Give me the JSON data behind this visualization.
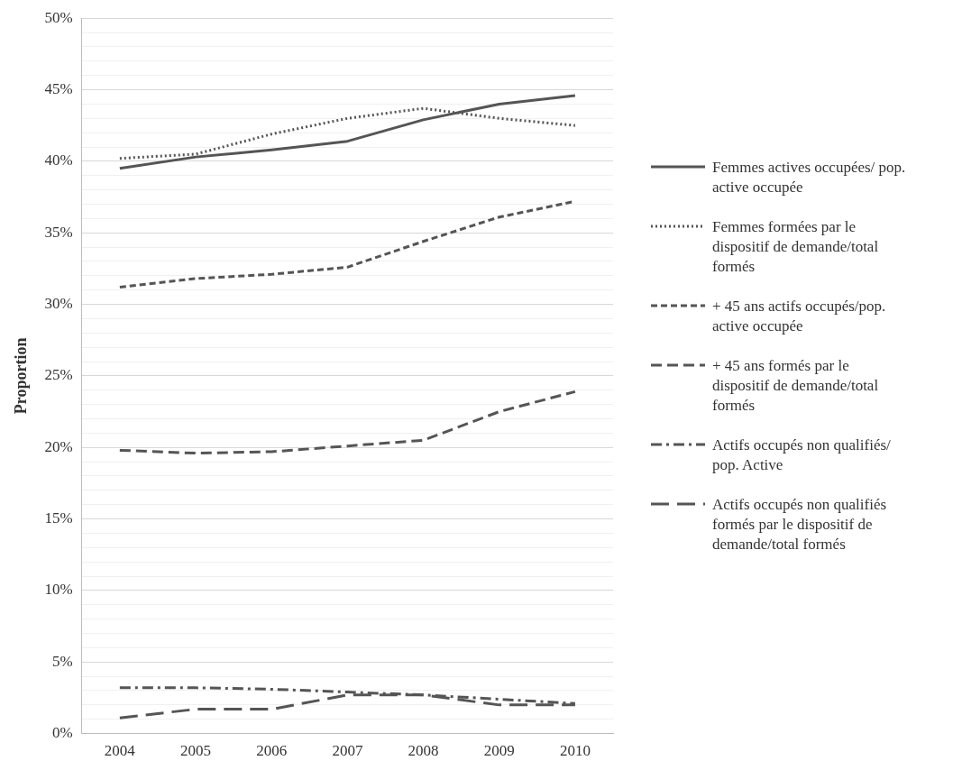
{
  "chart_data": {
    "type": "line",
    "ylabel": "Proportion",
    "categories": [
      "2004",
      "2005",
      "2006",
      "2007",
      "2008",
      "2009",
      "2010"
    ],
    "ylim": [
      0,
      50
    ],
    "yticks": [
      {
        "value": 0,
        "label": "0%"
      },
      {
        "value": 1,
        "label": null
      },
      {
        "value": 2,
        "label": null
      },
      {
        "value": 3,
        "label": null
      },
      {
        "value": 4,
        "label": null
      },
      {
        "value": 5,
        "label": "5%"
      },
      {
        "value": 6,
        "label": null
      },
      {
        "value": 7,
        "label": null
      },
      {
        "value": 8,
        "label": null
      },
      {
        "value": 9,
        "label": null
      },
      {
        "value": 10,
        "label": "10%"
      },
      {
        "value": 11,
        "label": null
      },
      {
        "value": 12,
        "label": null
      },
      {
        "value": 13,
        "label": null
      },
      {
        "value": 14,
        "label": null
      },
      {
        "value": 15,
        "label": "15%"
      },
      {
        "value": 16,
        "label": null
      },
      {
        "value": 17,
        "label": null
      },
      {
        "value": 18,
        "label": null
      },
      {
        "value": 19,
        "label": null
      },
      {
        "value": 20,
        "label": "20%"
      },
      {
        "value": 21,
        "label": null
      },
      {
        "value": 22,
        "label": null
      },
      {
        "value": 23,
        "label": null
      },
      {
        "value": 24,
        "label": null
      },
      {
        "value": 25,
        "label": "25%"
      },
      {
        "value": 26,
        "label": null
      },
      {
        "value": 27,
        "label": null
      },
      {
        "value": 28,
        "label": null
      },
      {
        "value": 29,
        "label": null
      },
      {
        "value": 30,
        "label": "30%"
      },
      {
        "value": 31,
        "label": null
      },
      {
        "value": 32,
        "label": null
      },
      {
        "value": 33,
        "label": null
      },
      {
        "value": 34,
        "label": null
      },
      {
        "value": 35,
        "label": "35%"
      },
      {
        "value": 36,
        "label": null
      },
      {
        "value": 37,
        "label": null
      },
      {
        "value": 38,
        "label": null
      },
      {
        "value": 39,
        "label": null
      },
      {
        "value": 40,
        "label": "40%"
      },
      {
        "value": 41,
        "label": null
      },
      {
        "value": 42,
        "label": null
      },
      {
        "value": 43,
        "label": null
      },
      {
        "value": 44,
        "label": null
      },
      {
        "value": 45,
        "label": "45%"
      },
      {
        "value": 46,
        "label": null
      },
      {
        "value": 47,
        "label": null
      },
      {
        "value": 48,
        "label": null
      },
      {
        "value": 49,
        "label": null
      },
      {
        "value": 50,
        "label": "50%"
      }
    ],
    "grid": "y",
    "legend": "right",
    "marker": "none",
    "series": [
      {
        "name": "Femmes actives occupées/ pop. active occupée",
        "color": "#555555",
        "line_style": "solid",
        "values": [
          39.5,
          40.3,
          40.8,
          41.4,
          42.9,
          44.0,
          44.6
        ]
      },
      {
        "name": "Femmes formées par le dispositif de demande/total formés",
        "color": "#555555",
        "line_style": "dotted",
        "values": [
          40.2,
          40.5,
          41.9,
          43.0,
          43.7,
          43.0,
          42.5
        ]
      },
      {
        "name": "+ 45 ans actifs occupés/pop. active occupée",
        "color": "#555555",
        "line_style": "dashed",
        "values": [
          31.2,
          31.8,
          32.1,
          32.6,
          34.4,
          36.1,
          37.2
        ]
      },
      {
        "name": "+ 45 ans formés par le dispositif de demande/total formés",
        "color": "#555555",
        "line_style": "longdash",
        "values": [
          19.8,
          19.6,
          19.7,
          20.1,
          20.5,
          22.5,
          23.9
        ]
      },
      {
        "name": "Actifs occupés non qualifiés/ pop. Active",
        "color": "#555555",
        "line_style": "dashdot",
        "values": [
          3.2,
          3.2,
          3.1,
          2.9,
          2.7,
          2.4,
          2.1
        ]
      },
      {
        "name": "Actifs occupés non qualifiés formés par le dispositif de demande/total formés",
        "color": "#555555",
        "line_style": "longlongdash",
        "values": [
          1.1,
          1.7,
          1.7,
          2.7,
          2.7,
          2.0,
          2.0
        ]
      }
    ]
  }
}
